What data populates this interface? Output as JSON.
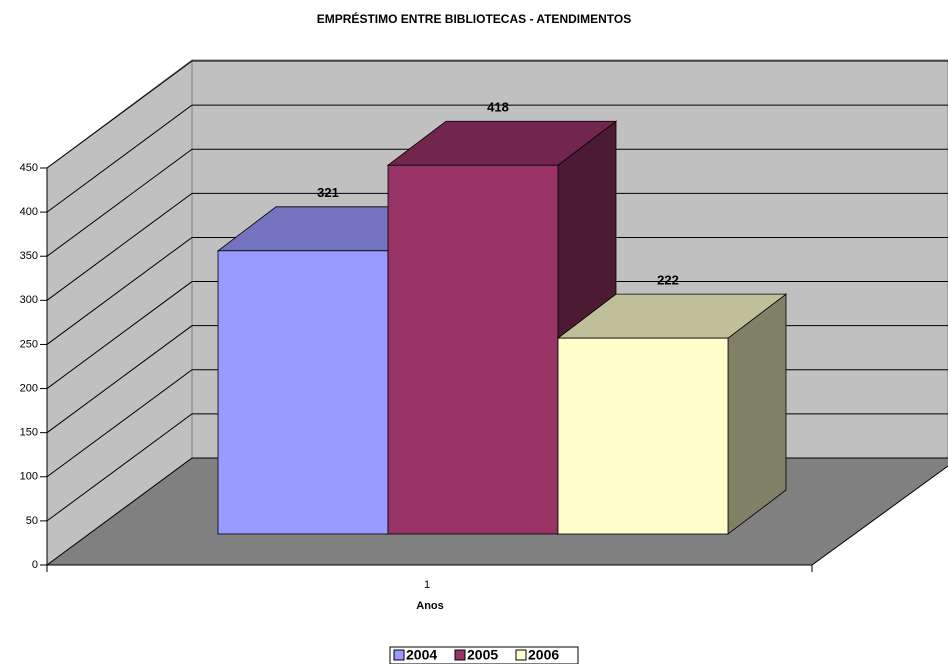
{
  "chart_data": {
    "type": "bar3d",
    "title": "EMPRÉSTIMO ENTRE BIBLIOTECAS - ATENDIMENTOS",
    "x_label": "Anos",
    "categories": [
      "1"
    ],
    "series": [
      {
        "name": "2004",
        "color": "#9999ff",
        "values": [
          321
        ]
      },
      {
        "name": "2005",
        "color": "#993366",
        "values": [
          418
        ]
      },
      {
        "name": "2006",
        "color": "#ffffcc",
        "values": [
          222
        ]
      }
    ],
    "ylim": [
      0,
      450
    ],
    "yticks": [
      0,
      50,
      100,
      150,
      200,
      250,
      300,
      350,
      400,
      450
    ],
    "grid": true,
    "legend": "bottom"
  }
}
